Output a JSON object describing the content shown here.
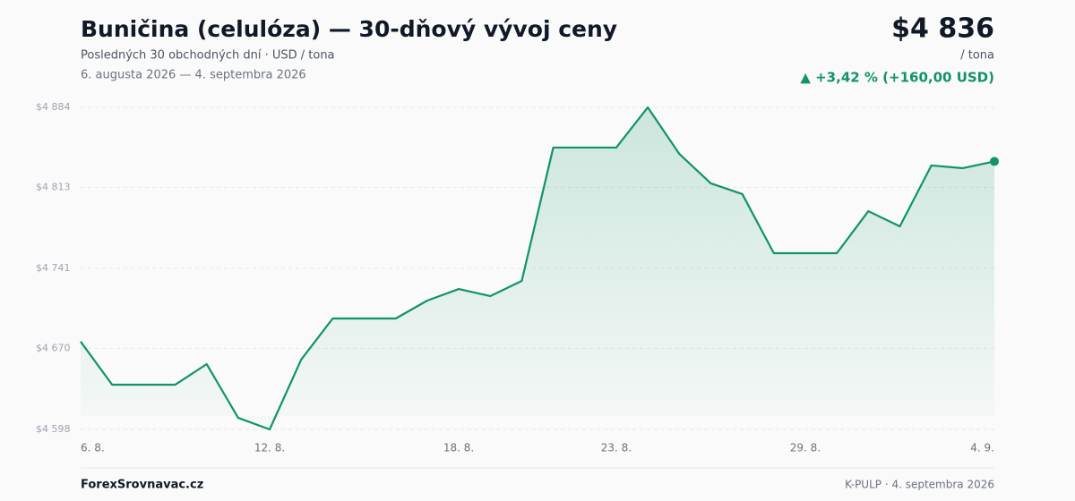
{
  "chart_data": {
    "type": "line",
    "title": "Buničina (celulóza) — 30-dňový vývoj ceny",
    "subtitle": "Posledných 30 obchodných dní · USD / tona",
    "date_range": "6. augusta 2026 — 4. septembra 2026",
    "price": "$4 836",
    "unit": "/ tona",
    "change": "▲ +3,42 % (+160,00 USD)",
    "source": "ForexSrovnavac.cz",
    "footnote": "K-PULP · 4. septembra 2026",
    "categories": [
      "6. 8.",
      null,
      null,
      null,
      null,
      null,
      "12. 8.",
      null,
      null,
      null,
      null,
      null,
      "18. 8.",
      null,
      null,
      null,
      null,
      "23. 8.",
      null,
      null,
      null,
      null,
      null,
      "29. 8.",
      null,
      null,
      null,
      null,
      null,
      "4. 9."
    ],
    "series": [
      {
        "color": "#11936a",
        "values": [
          4676,
          4637.7,
          4637.7,
          4637.7,
          4656,
          4608.3,
          4598,
          4660,
          4696.5,
          4696.5,
          4696.5,
          4712.4,
          4722.7,
          4716.4,
          4729.9,
          4848.3,
          4848.3,
          4848.3,
          4884,
          4842.7,
          4816.5,
          4807,
          4754.5,
          4754.5,
          4754.5,
          4791.8,
          4778.3,
          4832.4,
          4830,
          4836
        ]
      }
    ],
    "ylim": [
      4598,
      4884
    ],
    "yticks": [
      {
        "value": 4598,
        "label": "$4 598"
      },
      {
        "value": 4670,
        "label": "$4 670"
      },
      {
        "value": 4741,
        "label": "$4 741"
      },
      {
        "value": 4813,
        "label": "$4 813"
      },
      {
        "value": 4884,
        "label": "$4 884"
      }
    ],
    "grid": true
  }
}
